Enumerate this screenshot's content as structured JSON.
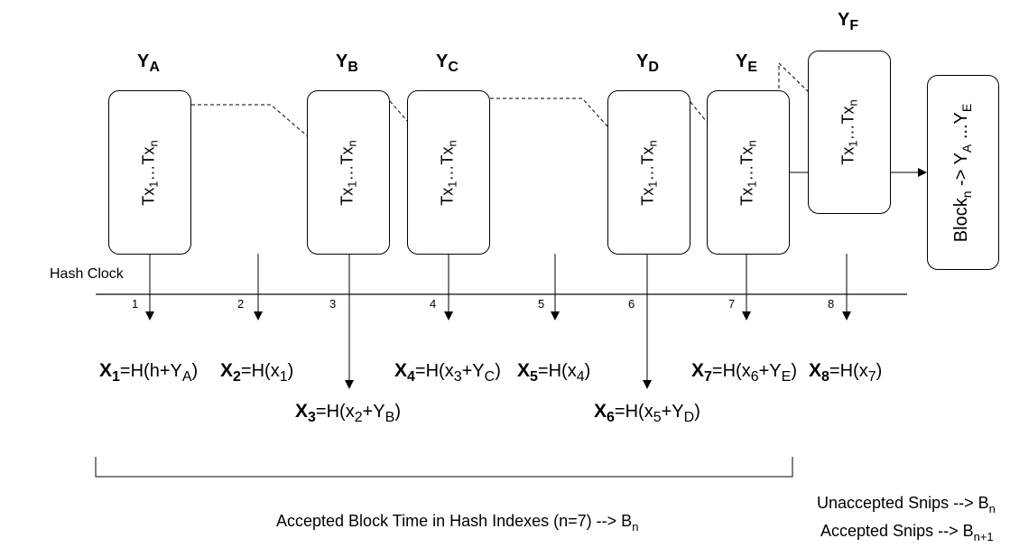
{
  "blocks": [
    {
      "letter": "Y",
      "sub": "A",
      "tx_base": "Tx",
      "tx_first": "1",
      "tx_sep": "…Tx",
      "tx_last": "n"
    },
    {
      "letter": "Y",
      "sub": "B",
      "tx_base": "Tx",
      "tx_first": "1",
      "tx_sep": "…Tx",
      "tx_last": "n"
    },
    {
      "letter": "Y",
      "sub": "C",
      "tx_base": "Tx",
      "tx_first": "1",
      "tx_sep": "…Tx",
      "tx_last": "n"
    },
    {
      "letter": "Y",
      "sub": "D",
      "tx_base": "Tx",
      "tx_first": "1",
      "tx_sep": "…Tx",
      "tx_last": "n"
    },
    {
      "letter": "Y",
      "sub": "E",
      "tx_base": "Tx",
      "tx_first": "1",
      "tx_sep": "…Tx",
      "tx_last": "n"
    },
    {
      "letter": "Y",
      "sub": "F",
      "tx_base": "Tx",
      "tx_first": "1",
      "tx_sep": "…Tx",
      "tx_last": "n"
    }
  ],
  "output_block": {
    "prefix": "Block",
    "sub_n": "n",
    "arrow": " -> Y",
    "sub_a": "A",
    "mid": " ...Y",
    "sub_e": "E"
  },
  "hash_clock_label": "Hash Clock",
  "ticks": [
    "1",
    "2",
    "3",
    "4",
    "5",
    "6",
    "7",
    "8"
  ],
  "formulas": [
    {
      "x": "X",
      "i": "1",
      "parts": [
        "=H(h+Y",
        "A",
        ")"
      ]
    },
    {
      "x": "X",
      "i": "2",
      "parts": [
        "=H(x",
        "1",
        ")"
      ]
    },
    {
      "x": "X",
      "i": "3",
      "parts": [
        "=H(x",
        "2",
        "+Y",
        "B",
        ")"
      ]
    },
    {
      "x": "X",
      "i": "4",
      "parts": [
        "=H(x",
        "3",
        "+Y",
        "C",
        ")"
      ]
    },
    {
      "x": "X",
      "i": "5",
      "parts": [
        "=H(x",
        "4",
        ")"
      ]
    },
    {
      "x": "X",
      "i": "6",
      "parts": [
        "=H(x",
        "5",
        "+Y",
        "D",
        ")"
      ]
    },
    {
      "x": "X",
      "i": "7",
      "parts": [
        "=H(x",
        "6",
        "+Y",
        "E",
        ")"
      ]
    },
    {
      "x": "X",
      "i": "8",
      "parts": [
        "=H(x",
        "7",
        ")"
      ]
    }
  ],
  "accepted_block_text": "Accepted Block Time in Hash Indexes (n=7) --> B",
  "accepted_block_sub": "n",
  "unaccepted_snips_text": "Unaccepted Snips --> B",
  "unaccepted_snips_sub": "n",
  "accepted_snips_text": "Accepted Snips --> B",
  "accepted_snips_sub": "n+1"
}
